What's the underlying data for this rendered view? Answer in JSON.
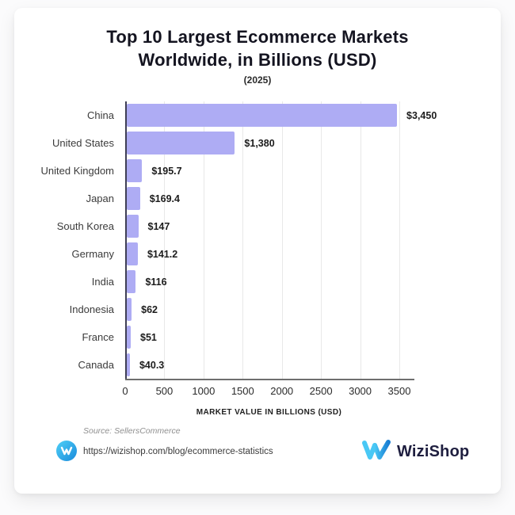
{
  "page": {
    "background": "#fbfbfc",
    "card_background": "#ffffff"
  },
  "header": {
    "title_line1": "Top 10 Largest Ecommerce Markets",
    "title_line2": "Worldwide, in Billions (USD)",
    "subtitle": "(2025)"
  },
  "chart_data": {
    "type": "bar",
    "orientation": "horizontal",
    "title": "Top 10 Largest Ecommerce Markets Worldwide, in Billions (USD)",
    "subtitle": "(2025)",
    "categories": [
      "China",
      "United States",
      "United Kingdom",
      "Japan",
      "South Korea",
      "Germany",
      "India",
      "Indonesia",
      "France",
      "Canada"
    ],
    "values": [
      3450,
      1380,
      195.7,
      169.4,
      147,
      141.2,
      116,
      62,
      51,
      40.3
    ],
    "value_labels": [
      "$3,450",
      "$1,380",
      "$195.7",
      "$169.4",
      "$147",
      "$141.2",
      "$116",
      "$62",
      "$51",
      "$40.3"
    ],
    "xlabel": "MARKET VALUE IN BILLIONS (USD)",
    "x_ticks": [
      0,
      500,
      1000,
      1500,
      2000,
      2500,
      3000,
      3500
    ],
    "xlim": [
      0,
      3670
    ],
    "grid": true,
    "legend": "none",
    "bar_color": "#aeacf4"
  },
  "footer": {
    "source": "Source: SellersCommerce",
    "url": "https://wizishop.com/blog/ecommerce-statistics",
    "brand": "WiziShop"
  },
  "colors": {
    "bar": "#aeacf4",
    "y_axis": "#3f3f55",
    "x_axis": "#6e6e6e",
    "gridline": "#e8e8e8",
    "brand_blue_light": "#49c8f5",
    "brand_blue_dark": "#1a7fd4",
    "brand_navy": "#1e1e3f"
  }
}
